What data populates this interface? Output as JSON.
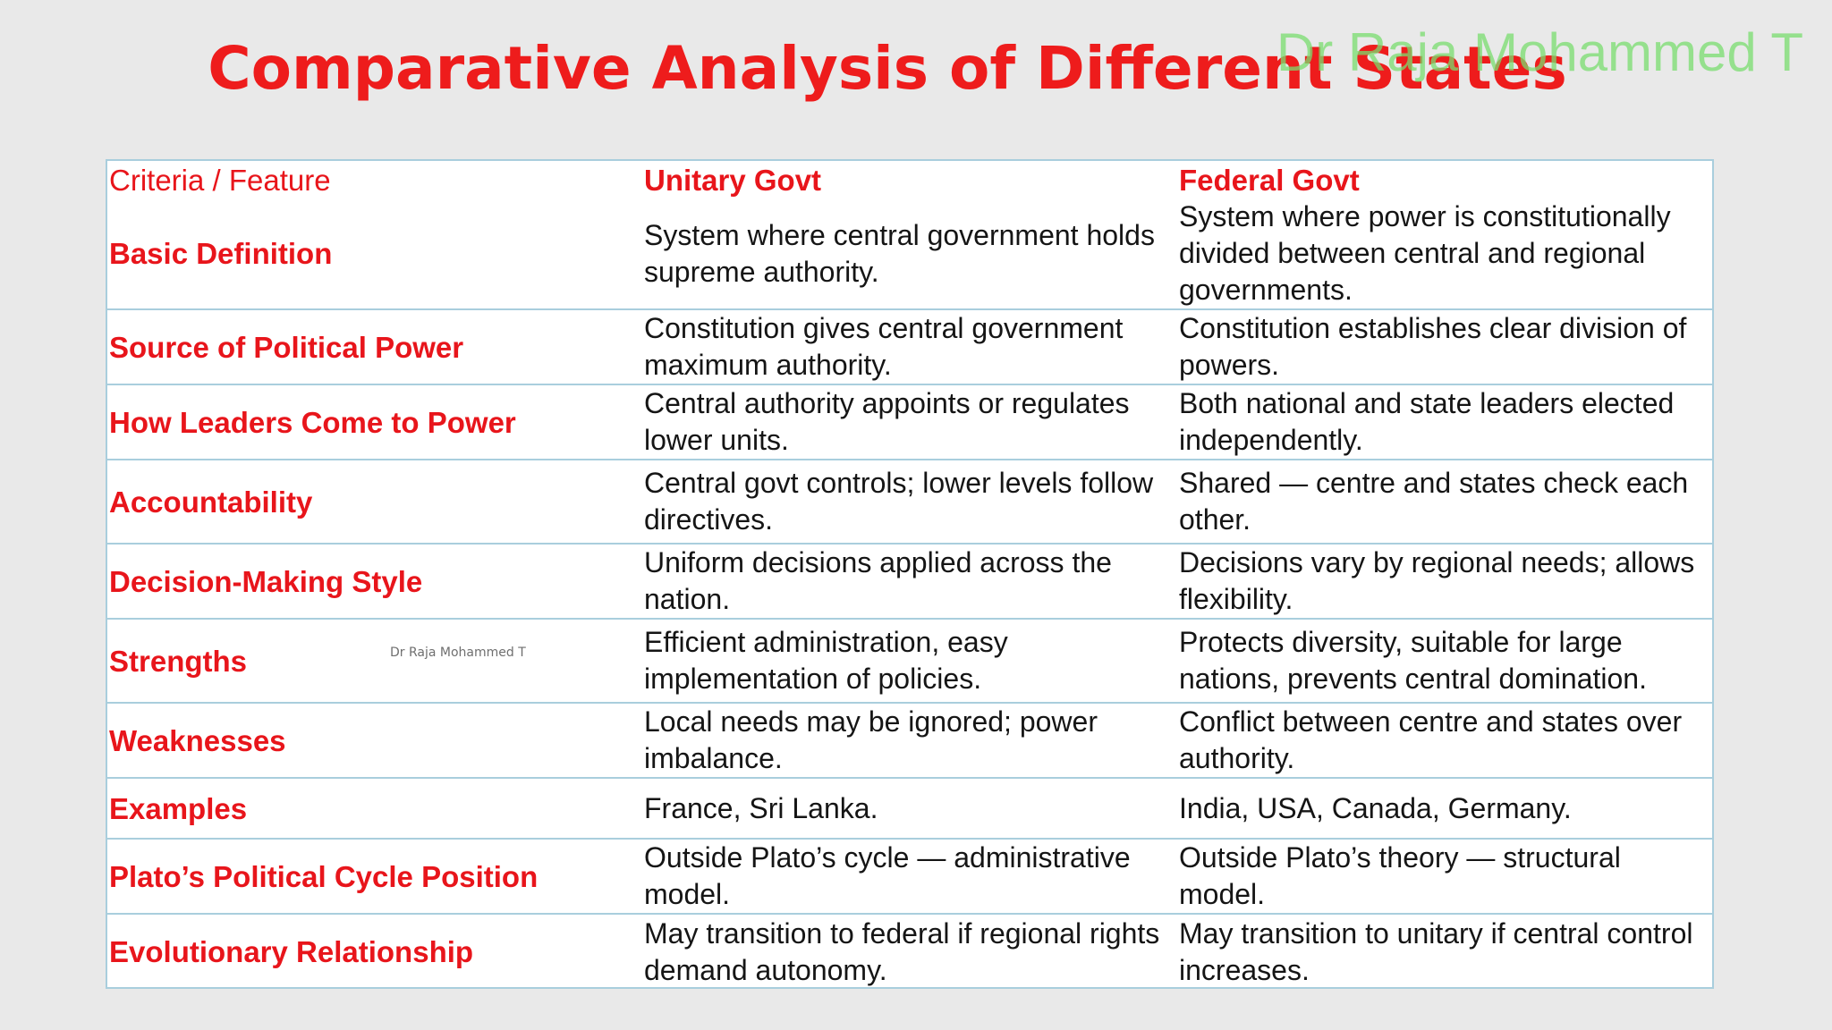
{
  "title": "Comparative Analysis of Different States",
  "watermark": "Dr Raja Mohammed T",
  "watermark_small": "Dr Raja Mohammed T",
  "colors": {
    "title": "#ee1c1c",
    "criteria_text": "#e8151b",
    "border": "#a9cedd",
    "watermark": "#78dc6e"
  },
  "table": {
    "headers": {
      "criteria": "Criteria / Feature",
      "unitary": "Unitary Govt",
      "federal": "Federal Govt"
    },
    "rows": [
      {
        "criteria": "Basic Definition",
        "unitary": "System where central government holds supreme authority.",
        "federal": "System where power is constitutionally divided between central and regional governments."
      },
      {
        "criteria": "Source of Political Power",
        "unitary": "Constitution gives central government maximum authority.",
        "federal": "Constitution establishes clear division of powers."
      },
      {
        "criteria": "How Leaders Come to Power",
        "unitary": "Central authority appoints or regulates lower units.",
        "federal": "Both national and state leaders elected independently."
      },
      {
        "criteria": "Accountability",
        "unitary": "Central govt controls; lower levels follow directives.",
        "federal": "Shared — centre and states check each other."
      },
      {
        "criteria": "Decision-Making Style",
        "unitary": "Uniform decisions applied across the nation.",
        "federal": "Decisions vary by regional needs; allows flexibility."
      },
      {
        "criteria": "Strengths",
        "unitary": "Efficient administration, easy implementation of policies.",
        "federal": "Protects diversity, suitable for large nations, prevents central domination."
      },
      {
        "criteria": "Weaknesses",
        "unitary": "Local needs may be ignored; power imbalance.",
        "federal": "Conflict between centre and states over authority."
      },
      {
        "criteria": "Examples",
        "unitary": "France, Sri Lanka.",
        "federal": "India, USA, Canada, Germany."
      },
      {
        "criteria": "Plato’s Political Cycle Position",
        "unitary": "Outside Plato’s cycle — administrative model.",
        "federal": "Outside Plato’s theory — structural model."
      },
      {
        "criteria": "Evolutionary Relationship",
        "unitary": "May transition to federal if regional rights demand autonomy.",
        "federal": "May transition to unitary if central control increases."
      }
    ]
  }
}
